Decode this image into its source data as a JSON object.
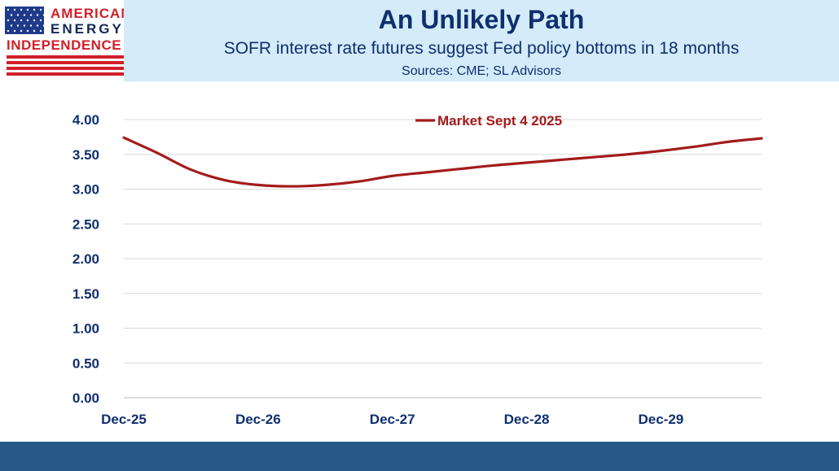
{
  "logo": {
    "line1": "AMERICAN",
    "line2": "ENERGY",
    "line3": "INDEPENDENCE",
    "flag_blue": "#1f3a8a",
    "stripe_red": "#d0202a"
  },
  "header": {
    "title": "An Unlikely Path",
    "subtitle": "SOFR interest rate futures suggest Fed policy bottoms in 18 months",
    "sources": "Sources: CME; SL Advisors",
    "band_color": "#d4ebf9"
  },
  "footer": {
    "color": "#275887"
  },
  "chart_data": {
    "type": "line",
    "title": "",
    "xlabel": "",
    "ylabel": "",
    "ylim": [
      0,
      4
    ],
    "yticks": [
      "0.00",
      "0.50",
      "1.00",
      "1.50",
      "2.00",
      "2.50",
      "3.00",
      "3.50",
      "4.00"
    ],
    "xlim": [
      0,
      57
    ],
    "xticks": [
      {
        "label": "Dec-25",
        "month": 0
      },
      {
        "label": "Dec-26",
        "month": 12
      },
      {
        "label": "Dec-27",
        "month": 24
      },
      {
        "label": "Dec-28",
        "month": 36
      },
      {
        "label": "Dec-29",
        "month": 48
      }
    ],
    "grid": true,
    "legend": "top-center",
    "series": [
      {
        "name": "Market Sept 4 2025",
        "color": "#a31b1b",
        "x": [
          0,
          3,
          6,
          9,
          12,
          15,
          18,
          21,
          24,
          27,
          30,
          33,
          36,
          39,
          42,
          45,
          48,
          51,
          54,
          57
        ],
        "values": [
          3.74,
          3.52,
          3.28,
          3.13,
          3.06,
          3.04,
          3.06,
          3.11,
          3.19,
          3.24,
          3.29,
          3.34,
          3.38,
          3.42,
          3.46,
          3.5,
          3.55,
          3.61,
          3.68,
          3.73
        ]
      }
    ]
  }
}
